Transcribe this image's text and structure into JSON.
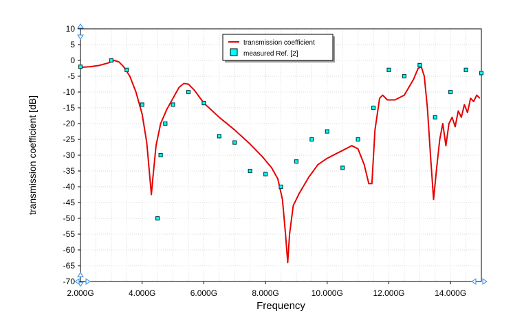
{
  "chart_data": {
    "type": "line",
    "title": "",
    "xlabel": "Frequency",
    "ylabel": "transmission coefficient [dB]",
    "xlim": [
      2.0,
      15.0
    ],
    "ylim": [
      -70,
      10
    ],
    "x_unit": "GHz",
    "x_ticks": [
      {
        "value": 2,
        "label": "2.000G"
      },
      {
        "value": 4,
        "label": "4.000G"
      },
      {
        "value": 6,
        "label": "6.000G"
      },
      {
        "value": 8,
        "label": "8.000G"
      },
      {
        "value": 10,
        "label": "10.000G"
      },
      {
        "value": 12,
        "label": "12.000G"
      },
      {
        "value": 14,
        "label": "14.000G"
      }
    ],
    "y_ticks": [
      {
        "value": 10,
        "label": "10"
      },
      {
        "value": 5,
        "label": "5"
      },
      {
        "value": 0,
        "label": "0"
      },
      {
        "value": -5,
        "label": "-5"
      },
      {
        "value": -10,
        "label": "-10"
      },
      {
        "value": -15,
        "label": "-15"
      },
      {
        "value": -20,
        "label": "-20"
      },
      {
        "value": -25,
        "label": "-25"
      },
      {
        "value": -30,
        "label": "-30"
      },
      {
        "value": -35,
        "label": "-35"
      },
      {
        "value": -40,
        "label": "-40"
      },
      {
        "value": -45,
        "label": "-45"
      },
      {
        "value": -50,
        "label": "-50"
      },
      {
        "value": -55,
        "label": "-55"
      },
      {
        "value": -60,
        "label": "-60"
      },
      {
        "value": -65,
        "label": "-65"
      },
      {
        "value": -70,
        "label": "-70"
      }
    ],
    "grid": true,
    "legend_position": "top-center",
    "series": [
      {
        "name": "transmission coefficient",
        "kind": "line",
        "color": "#e60000",
        "points": [
          [
            2.0,
            -2.2
          ],
          [
            2.3,
            -2.0
          ],
          [
            2.6,
            -1.6
          ],
          [
            2.9,
            -0.8
          ],
          [
            3.1,
            0.0
          ],
          [
            3.25,
            -0.5
          ],
          [
            3.4,
            -2.0
          ],
          [
            3.6,
            -5.0
          ],
          [
            3.8,
            -10.0
          ],
          [
            4.0,
            -17.0
          ],
          [
            4.15,
            -26.0
          ],
          [
            4.25,
            -37.0
          ],
          [
            4.3,
            -42.5
          ],
          [
            4.35,
            -37.0
          ],
          [
            4.45,
            -27.0
          ],
          [
            4.6,
            -20.0
          ],
          [
            4.8,
            -15.5
          ],
          [
            5.0,
            -12.0
          ],
          [
            5.2,
            -8.5
          ],
          [
            5.35,
            -7.3
          ],
          [
            5.5,
            -7.5
          ],
          [
            5.7,
            -9.5
          ],
          [
            6.0,
            -13.5
          ],
          [
            6.5,
            -18.0
          ],
          [
            7.0,
            -22.0
          ],
          [
            7.5,
            -26.5
          ],
          [
            7.9,
            -30.5
          ],
          [
            8.2,
            -34.0
          ],
          [
            8.4,
            -37.5
          ],
          [
            8.55,
            -44.0
          ],
          [
            8.65,
            -55.0
          ],
          [
            8.72,
            -64.0
          ],
          [
            8.78,
            -55.0
          ],
          [
            8.9,
            -46.0
          ],
          [
            9.1,
            -42.0
          ],
          [
            9.4,
            -37.0
          ],
          [
            9.7,
            -33.0
          ],
          [
            10.0,
            -31.0
          ],
          [
            10.3,
            -29.5
          ],
          [
            10.6,
            -28.0
          ],
          [
            10.8,
            -27.0
          ],
          [
            11.0,
            -28.0
          ],
          [
            11.2,
            -33.0
          ],
          [
            11.35,
            -39.0
          ],
          [
            11.45,
            -39.0
          ],
          [
            11.55,
            -22.0
          ],
          [
            11.7,
            -12.0
          ],
          [
            11.8,
            -11.0
          ],
          [
            11.95,
            -12.5
          ],
          [
            12.2,
            -12.5
          ],
          [
            12.5,
            -11.0
          ],
          [
            12.8,
            -6.0
          ],
          [
            12.95,
            -2.5
          ],
          [
            13.05,
            -2.0
          ],
          [
            13.15,
            -5.0
          ],
          [
            13.25,
            -15.0
          ],
          [
            13.35,
            -30.0
          ],
          [
            13.45,
            -44.0
          ],
          [
            13.55,
            -34.0
          ],
          [
            13.65,
            -25.0
          ],
          [
            13.75,
            -20.0
          ],
          [
            13.85,
            -27.0
          ],
          [
            13.95,
            -20.0
          ],
          [
            14.05,
            -18.0
          ],
          [
            14.15,
            -21.0
          ],
          [
            14.25,
            -16.0
          ],
          [
            14.35,
            -18.0
          ],
          [
            14.45,
            -14.0
          ],
          [
            14.55,
            -16.5
          ],
          [
            14.65,
            -12.0
          ],
          [
            14.75,
            -13.0
          ],
          [
            14.85,
            -11.0
          ],
          [
            14.95,
            -12.0
          ]
        ]
      },
      {
        "name": "measured Ref. [2]",
        "kind": "markers",
        "color": "#00ffff",
        "points": [
          [
            2.0,
            -2.0
          ],
          [
            3.0,
            0.0
          ],
          [
            3.5,
            -3.0
          ],
          [
            4.0,
            -14.0
          ],
          [
            4.5,
            -50.0
          ],
          [
            4.6,
            -30.0
          ],
          [
            4.75,
            -20.0
          ],
          [
            5.0,
            -14.0
          ],
          [
            5.5,
            -10.0
          ],
          [
            6.0,
            -13.5
          ],
          [
            6.5,
            -24.0
          ],
          [
            7.0,
            -26.0
          ],
          [
            7.5,
            -35.0
          ],
          [
            8.0,
            -36.0
          ],
          [
            8.5,
            -40.0
          ],
          [
            9.0,
            -32.0
          ],
          [
            9.5,
            -25.0
          ],
          [
            10.0,
            -22.5
          ],
          [
            10.5,
            -34.0
          ],
          [
            11.0,
            -25.0
          ],
          [
            11.5,
            -15.0
          ],
          [
            12.0,
            -3.0
          ],
          [
            12.5,
            -5.0
          ],
          [
            13.0,
            -1.5
          ],
          [
            13.5,
            -18.0
          ],
          [
            14.0,
            -10.0
          ],
          [
            14.5,
            -3.0
          ],
          [
            15.0,
            -4.0
          ]
        ]
      }
    ]
  }
}
